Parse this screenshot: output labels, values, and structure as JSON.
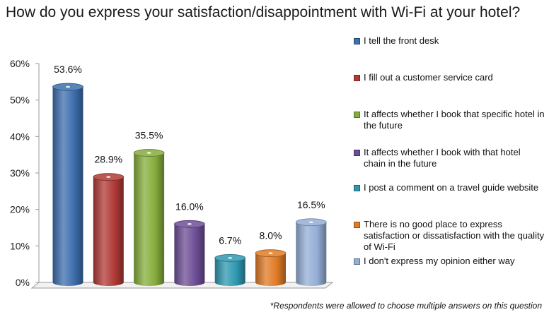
{
  "chart_data": {
    "type": "bar",
    "title": "How do you express your satisfaction/disappointment with Wi-Fi at your hotel?",
    "categories": [
      "I tell the front desk",
      "I fill out a customer service card",
      "It affects whether I book that specific hotel in the future",
      "It affects whether I book with that hotel chain in the future",
      "I post a comment on a travel guide website",
      "There is no good place to express satisfaction or dissatisfaction with the quality of Wi-Fi",
      "I don't express my opinion either way"
    ],
    "values": [
      53.6,
      28.9,
      35.5,
      16.0,
      6.7,
      8.0,
      16.5
    ],
    "value_labels": [
      "53.6%",
      "28.9%",
      "35.5%",
      "16.0%",
      "6.7%",
      "8.0%",
      "16.5%"
    ],
    "colors": [
      "#3d6fad",
      "#b03a36",
      "#86ad3c",
      "#6d4e96",
      "#2f98b0",
      "#e07b26",
      "#94aed6"
    ],
    "ylim": [
      0,
      60
    ],
    "yticks": [
      0,
      10,
      20,
      30,
      40,
      50,
      60
    ],
    "ytick_labels": [
      "0%",
      "10%",
      "20%",
      "30%",
      "40%",
      "50%",
      "60%"
    ],
    "xlabel": "",
    "ylabel": "",
    "grid": false,
    "legend_position": "right",
    "footnote": "*Respondents were allowed to choose multiple answers on this question"
  }
}
